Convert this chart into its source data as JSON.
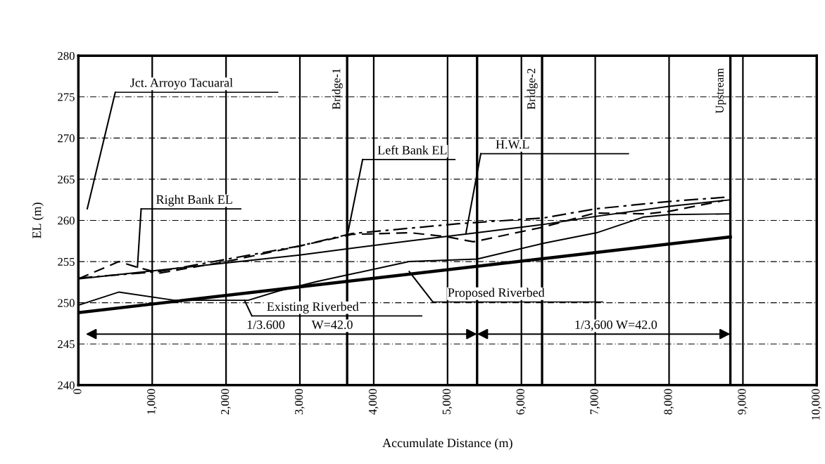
{
  "chart_data": {
    "type": "line",
    "xlabel": "Accumulate Distance (m)",
    "ylabel": "EL (m)",
    "xlim": [
      0,
      10000
    ],
    "ylim": [
      240,
      280
    ],
    "xticks": [
      0,
      {
        "value": 1000,
        "label": "1,000"
      },
      {
        "value": 2000,
        "label": "2,000"
      },
      {
        "value": 3000,
        "label": "3,000"
      },
      {
        "value": 4000,
        "label": "4,000"
      },
      {
        "value": 5000,
        "label": "5,000"
      },
      {
        "value": 6000,
        "label": "6,000"
      },
      {
        "value": 7000,
        "label": "7,000"
      },
      {
        "value": 8000,
        "label": "8,000"
      },
      {
        "value": 9000,
        "label": "9,000"
      },
      {
        "value": 10000,
        "label": "10,000"
      }
    ],
    "yticks": [
      240,
      245,
      250,
      255,
      260,
      265,
      270,
      275,
      280
    ],
    "grid": true,
    "legend": false,
    "marker": "none",
    "series": [
      {
        "color": "#000000",
        "line_style": "solid",
        "x": [
          0,
          8830
        ],
        "values": [
          248.8,
          258.0
        ]
      },
      {
        "color": "#000000",
        "line_style": "solid",
        "x": [
          0,
          550,
          1300,
          2300,
          2700,
          3240,
          3600,
          4480,
          5400,
          6290,
          7020,
          7650,
          8000,
          8830
        ],
        "values": [
          249.7,
          251.3,
          250.3,
          250.3,
          251.4,
          252.6,
          253.3,
          255.0,
          255.3,
          257.2,
          258.5,
          260.4,
          260.7,
          260.8
        ]
      },
      {
        "color": "#000000",
        "line_style": "solid",
        "x": [
          0,
          3000,
          3600,
          4480,
          5400,
          6290,
          7020,
          8000,
          8830
        ],
        "values": [
          252.9,
          255.8,
          256.5,
          257.5,
          258.5,
          259.5,
          260.5,
          261.7,
          262.5
        ]
      },
      {
        "color": "#000000",
        "line_style": "dashdot",
        "x": [
          0,
          1100,
          3000,
          3700,
          5150,
          6300,
          7000,
          8000,
          8750
        ],
        "values": [
          253.0,
          253.8,
          256.9,
          258.4,
          259.6,
          260.3,
          261.4,
          262.3,
          262.8
        ]
      },
      {
        "color": "#000000",
        "line_style": "dashed",
        "x": [
          0,
          550,
          800,
          1100,
          2000,
          3000,
          3700,
          4500,
          5000,
          5350,
          6300,
          7000,
          7700,
          8000,
          8730
        ],
        "values": [
          252.9,
          255.0,
          254.3,
          253.6,
          255.0,
          256.9,
          258.3,
          258.5,
          258.0,
          257.4,
          259.2,
          260.9,
          260.8,
          261.1,
          262.4
        ]
      }
    ],
    "ref_lines": [
      {
        "axis": "x",
        "value": 3640,
        "label": "Bridge-1",
        "color": "#000000"
      },
      {
        "axis": "x",
        "value": 5400,
        "label": null,
        "color": "#000000"
      },
      {
        "axis": "x",
        "value": 6280,
        "label": "Bridge-2",
        "color": "#000000"
      },
      {
        "axis": "x",
        "value": 8830,
        "label": "Upstream",
        "color": "#000000"
      }
    ],
    "annotations": [
      "Jct. Arroyo Tacuaral",
      {
        "text": "Right Bank EL",
        "x": 800,
        "y": 254.3
      },
      {
        "text": "Left Bank EL",
        "x": 3650,
        "y": 258.5
      },
      {
        "text": "H.W.L",
        "x": 5250,
        "y": 258.5
      },
      {
        "text": "Proposed Riverbed",
        "x": 4480,
        "y": 253.8
      },
      {
        "text": "Existing Riverbed",
        "x": 2250,
        "y": 250.3
      },
      "1/3.600",
      "W=42.0",
      "1/3,600",
      "W=42.0"
    ]
  }
}
